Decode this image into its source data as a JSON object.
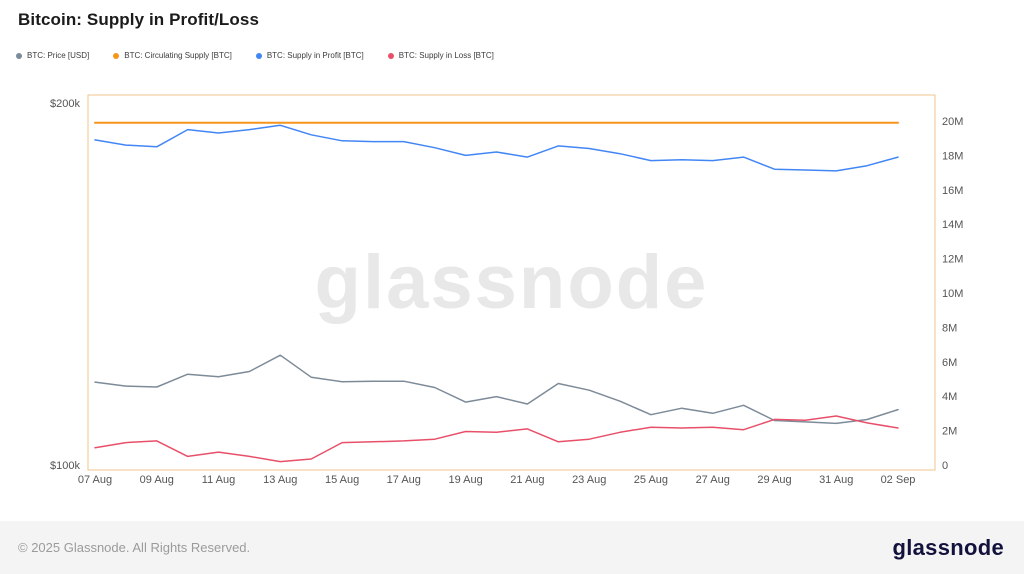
{
  "title": "Bitcoin: Supply in Profit/Loss",
  "watermark": "glassnode",
  "legend": [
    {
      "label": "BTC: Price [USD]",
      "color": "#7d8b99"
    },
    {
      "label": "BTC: Circulating Supply [BTC]",
      "color": "#f7941a"
    },
    {
      "label": "BTC: Supply in Profit [BTC]",
      "color": "#4286f5"
    },
    {
      "label": "BTC: Supply in Loss [BTC]",
      "color": "#e8506a"
    }
  ],
  "footer": {
    "copyright": "© 2025 Glassnode. All Rights Reserved.",
    "brand": "glassnode"
  },
  "chart_data": {
    "type": "line",
    "title": "Bitcoin: Supply in Profit/Loss",
    "xlabel": "",
    "ylabel_left": "",
    "ylabel_right": "",
    "grid": false,
    "legend_position": "top-left",
    "x": [
      "07 Aug",
      "08 Aug",
      "09 Aug",
      "10 Aug",
      "11 Aug",
      "12 Aug",
      "13 Aug",
      "14 Aug",
      "15 Aug",
      "16 Aug",
      "17 Aug",
      "18 Aug",
      "19 Aug",
      "20 Aug",
      "21 Aug",
      "22 Aug",
      "23 Aug",
      "24 Aug",
      "25 Aug",
      "26 Aug",
      "27 Aug",
      "28 Aug",
      "29 Aug",
      "30 Aug",
      "31 Aug",
      "01 Sep",
      "02 Sep"
    ],
    "x_tick_labels": [
      "07 Aug",
      "09 Aug",
      "11 Aug",
      "13 Aug",
      "15 Aug",
      "17 Aug",
      "19 Aug",
      "21 Aug",
      "23 Aug",
      "25 Aug",
      "27 Aug",
      "29 Aug",
      "31 Aug",
      "02 Sep"
    ],
    "left_axis": {
      "scale": "log",
      "units": "USD thousands",
      "range_k": [
        100,
        200
      ],
      "ticks": [
        {
          "value": 200,
          "label": "$200k"
        },
        {
          "value": 100,
          "label": "$100k"
        }
      ]
    },
    "right_axis": {
      "scale": "linear",
      "units": "BTC millions",
      "range_m": [
        0,
        20
      ],
      "ticks": [
        {
          "value": 20,
          "label": "20M"
        },
        {
          "value": 18,
          "label": "18M"
        },
        {
          "value": 16,
          "label": "16M"
        },
        {
          "value": 14,
          "label": "14M"
        },
        {
          "value": 12,
          "label": "12M"
        },
        {
          "value": 10,
          "label": "10M"
        },
        {
          "value": 8,
          "label": "8M"
        },
        {
          "value": 6,
          "label": "6M"
        },
        {
          "value": 4,
          "label": "4M"
        },
        {
          "value": 2,
          "label": "2M"
        },
        {
          "value": 0,
          "label": "0"
        }
      ]
    },
    "series": [
      {
        "name": "BTC: Price [USD]",
        "axis": "left",
        "units": "USD thousands",
        "color": "#7d8b99",
        "values": [
          117.2,
          116.3,
          116.1,
          119.0,
          118.4,
          119.6,
          123.4,
          118.3,
          117.3,
          117.4,
          117.4,
          116.0,
          112.8,
          114.0,
          112.4,
          116.9,
          115.4,
          113.0,
          110.1,
          111.5,
          110.4,
          112.1,
          108.9,
          108.6,
          108.3,
          109.1,
          111.2
        ]
      },
      {
        "name": "BTC: Circulating Supply [BTC]",
        "axis": "right",
        "units": "BTC millions",
        "color": "#f7941a",
        "values": [
          19.9,
          19.9,
          19.9,
          19.9,
          19.9,
          19.9,
          19.9,
          19.9,
          19.9,
          19.9,
          19.9,
          19.9,
          19.9,
          19.9,
          19.9,
          19.9,
          19.9,
          19.9,
          19.9,
          19.9,
          19.9,
          19.9,
          19.9,
          19.9,
          19.9,
          19.9,
          19.9
        ]
      },
      {
        "name": "BTC: Supply in Profit [BTC]",
        "axis": "right",
        "units": "BTC millions",
        "color": "#4286f5",
        "values": [
          18.9,
          18.6,
          18.5,
          19.5,
          19.3,
          19.5,
          19.75,
          19.2,
          18.85,
          18.8,
          18.8,
          18.45,
          18.0,
          18.2,
          17.9,
          18.55,
          18.4,
          18.1,
          17.7,
          17.75,
          17.7,
          17.9,
          17.2,
          17.15,
          17.1,
          17.4,
          17.9
        ]
      },
      {
        "name": "BTC: Supply in Loss [BTC]",
        "axis": "right",
        "units": "BTC millions",
        "color": "#e8506a",
        "values": [
          1.0,
          1.3,
          1.4,
          0.5,
          0.75,
          0.5,
          0.2,
          0.35,
          1.3,
          1.35,
          1.4,
          1.5,
          1.95,
          1.9,
          2.1,
          1.35,
          1.5,
          1.9,
          2.2,
          2.15,
          2.2,
          2.05,
          2.65,
          2.6,
          2.85,
          2.45,
          2.15
        ]
      }
    ]
  }
}
